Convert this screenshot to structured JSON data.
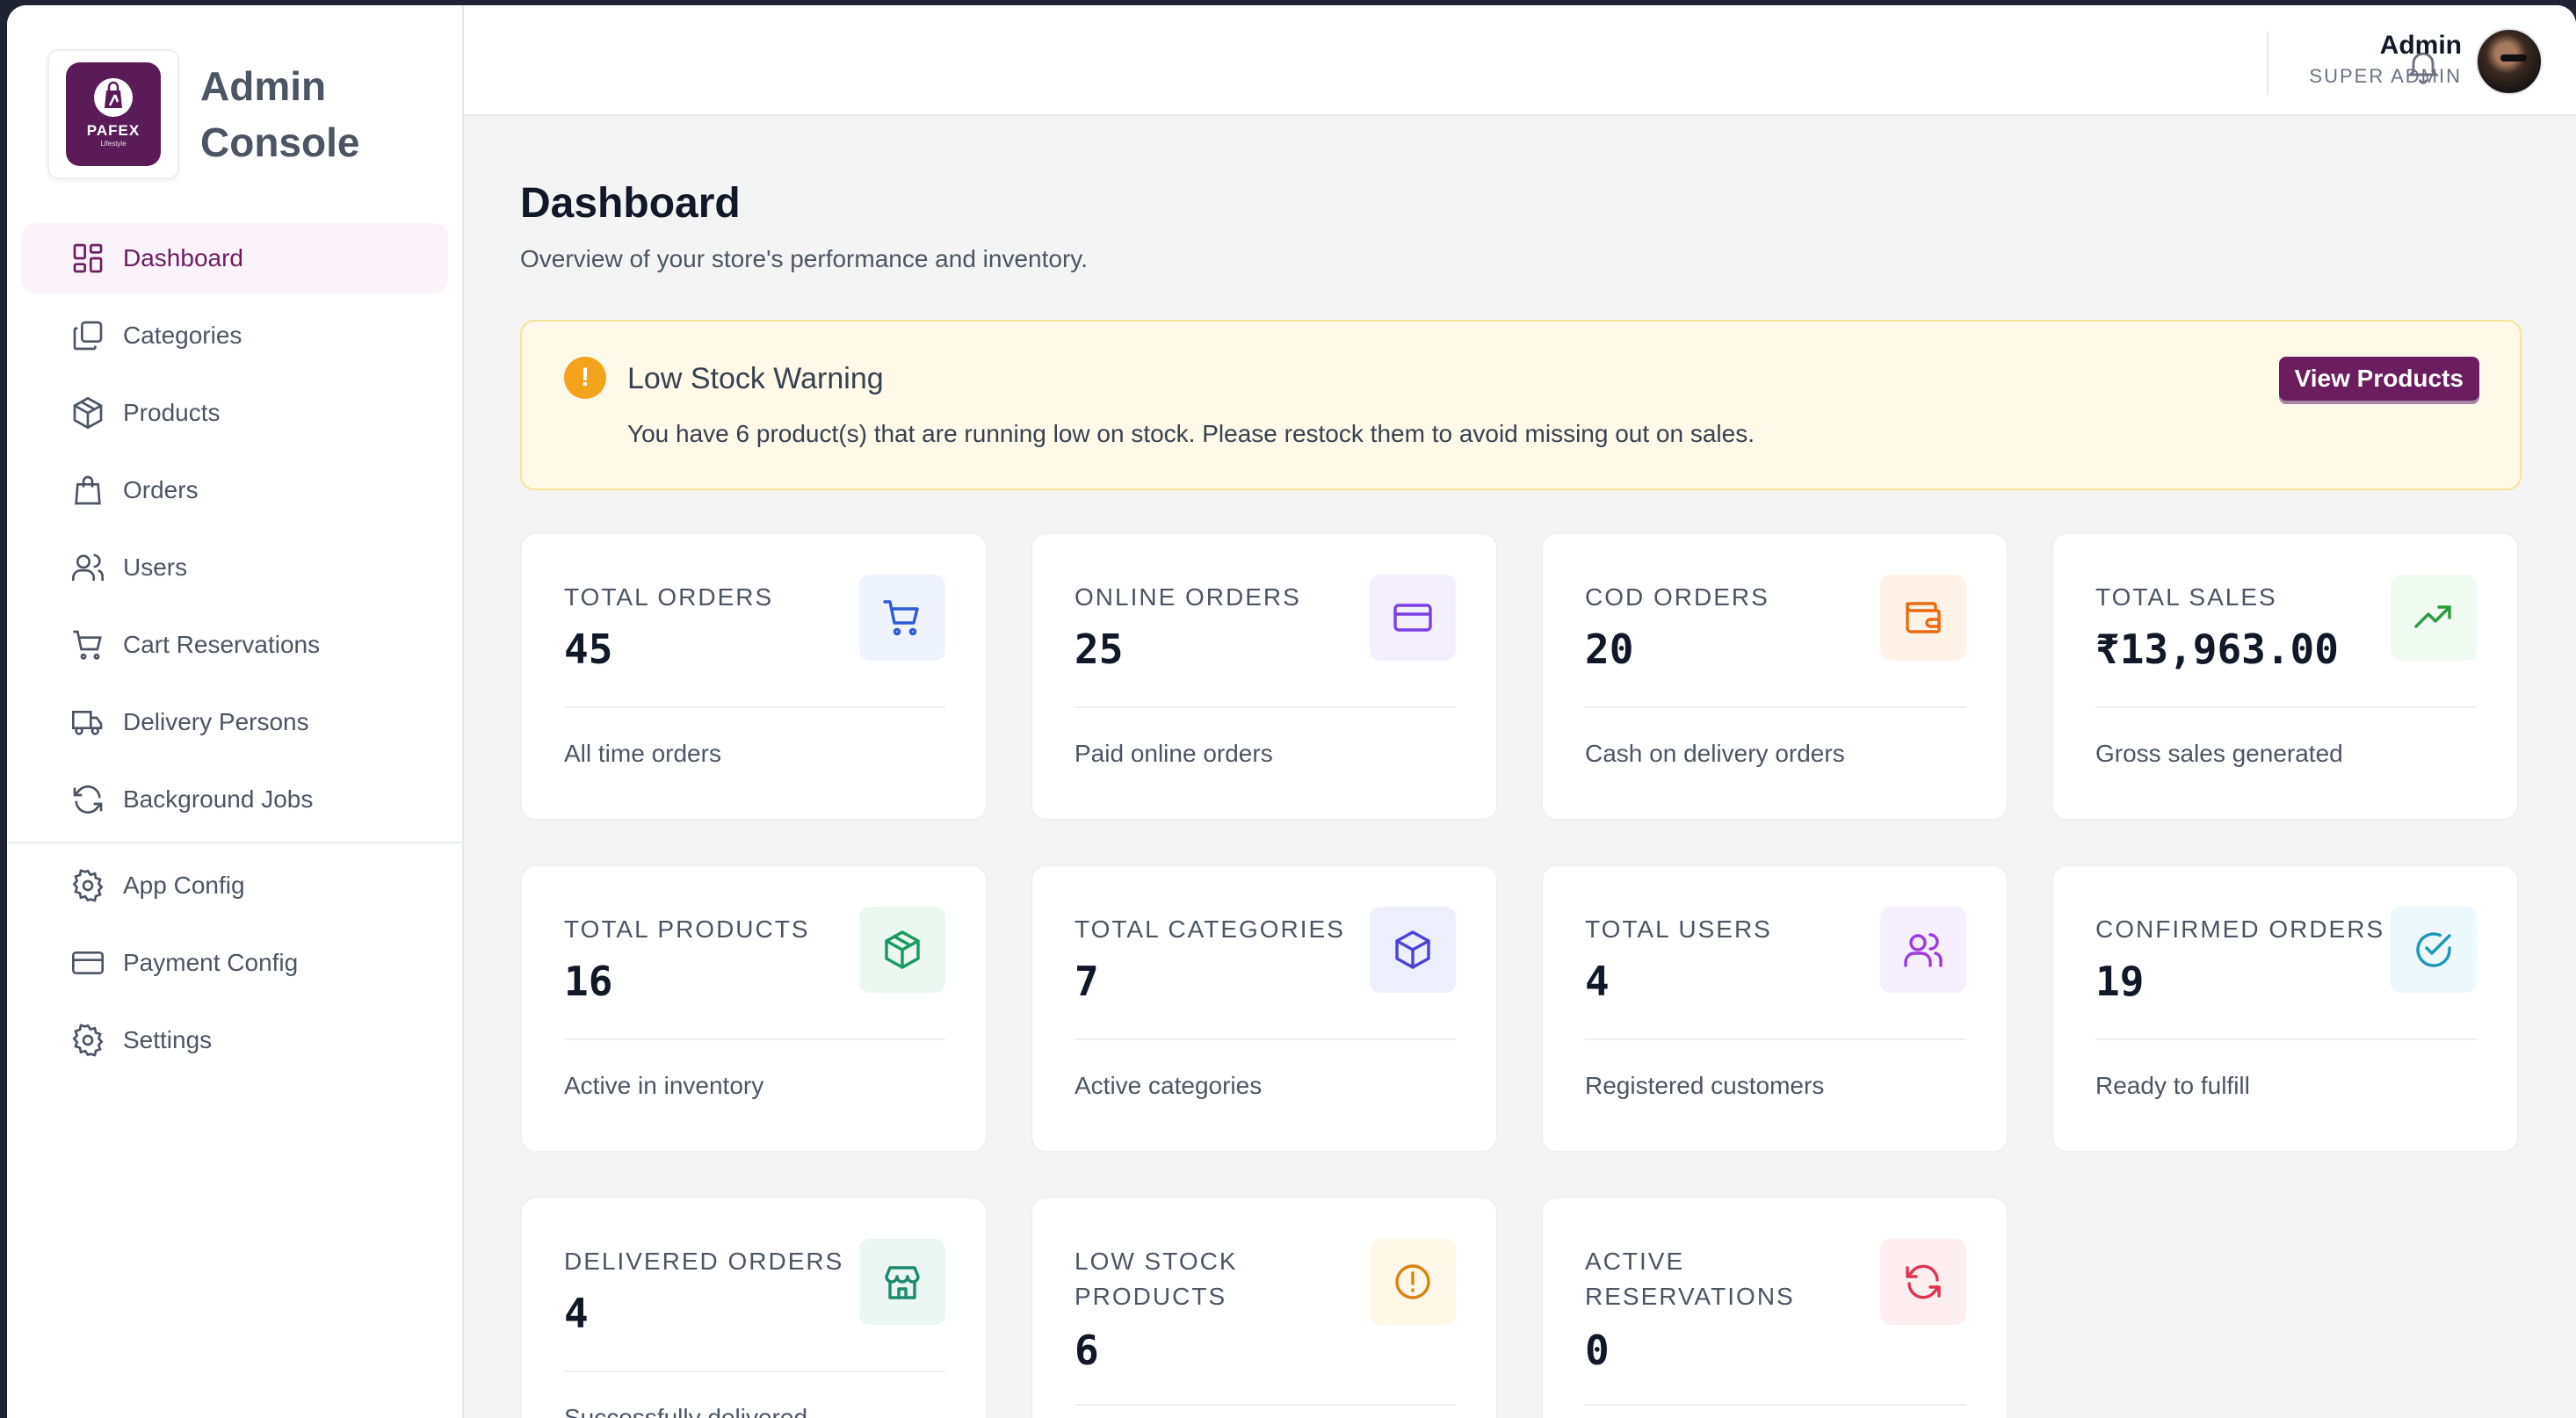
{
  "brand": {
    "logo_text": "PAFEX",
    "logo_sub": "Lifestyle",
    "title_line1": "Admin",
    "title_line2": "Console"
  },
  "sidebar": {
    "items": [
      {
        "label": "Dashboard",
        "icon": "dashboard-icon",
        "active": true
      },
      {
        "label": "Categories",
        "icon": "categories-icon"
      },
      {
        "label": "Products",
        "icon": "box-icon"
      },
      {
        "label": "Orders",
        "icon": "shopping-bag-icon"
      },
      {
        "label": "Users",
        "icon": "users-icon"
      },
      {
        "label": "Cart Reservations",
        "icon": "cart-icon"
      },
      {
        "label": "Delivery Persons",
        "icon": "truck-icon"
      },
      {
        "label": "Background Jobs",
        "icon": "refresh-icon"
      }
    ],
    "config_items": [
      {
        "label": "App Config",
        "icon": "gear-icon"
      },
      {
        "label": "Payment Config",
        "icon": "credit-card-icon"
      },
      {
        "label": "Settings",
        "icon": "gear-icon"
      }
    ]
  },
  "header": {
    "user_name": "Admin",
    "user_role": "SUPER ADMIN"
  },
  "page": {
    "title": "Dashboard",
    "subtitle": "Overview of your store's performance and inventory."
  },
  "alert": {
    "title": "Low Stock Warning",
    "text": "You have 6 product(s) that are running low on stock. Please restock them to avoid missing out on sales.",
    "button": "View Products",
    "icon_glyph": "!"
  },
  "cards": [
    {
      "label": "TOTAL ORDERS",
      "value": "45",
      "desc": "All time orders",
      "icon": "cart-icon",
      "bg": "#eef3fd",
      "color": "#2f5bd6"
    },
    {
      "label": "ONLINE ORDERS",
      "value": "25",
      "desc": "Paid online orders",
      "icon": "credit-card-icon",
      "bg": "#f3effd",
      "color": "#7b3fe4"
    },
    {
      "label": "COD ORDERS",
      "value": "20",
      "desc": "Cash on delivery orders",
      "icon": "wallet-icon",
      "bg": "#fff3e8",
      "color": "#ea6a10"
    },
    {
      "label": "TOTAL SALES",
      "value": "₹13,963.00",
      "desc": "Gross sales generated",
      "icon": "trending-up-icon",
      "bg": "#effaf1",
      "color": "#2e9a3e"
    },
    {
      "label": "TOTAL PRODUCTS",
      "value": "16",
      "desc": "Active in inventory",
      "icon": "package-icon",
      "bg": "#eaf8f1",
      "color": "#169a5e"
    },
    {
      "label": "TOTAL CATEGORIES",
      "value": "7",
      "desc": "Active categories",
      "icon": "cube-icon",
      "bg": "#eeeffd",
      "color": "#4a43d6"
    },
    {
      "label": "TOTAL USERS",
      "value": "4",
      "desc": "Registered customers",
      "icon": "users-icon",
      "bg": "#f6effd",
      "color": "#9b3ce0"
    },
    {
      "label": "CONFIRMED ORDERS",
      "value": "19",
      "desc": "Ready to fulfill",
      "icon": "check-circle-icon",
      "bg": "#ecf8fb",
      "color": "#1c97b6"
    },
    {
      "label": "DELIVERED ORDERS",
      "value": "4",
      "desc": "Successfully delivered",
      "icon": "store-icon",
      "bg": "#eaf7f3",
      "color": "#1d8a70"
    },
    {
      "label": "LOW STOCK PRODUCTS",
      "value": "6",
      "desc": "",
      "icon": "alert-circle-icon",
      "bg": "#fff7e8",
      "color": "#d9820f"
    },
    {
      "label": "ACTIVE RESERVATIONS",
      "value": "0",
      "desc": "",
      "icon": "refresh-icon",
      "bg": "#fdeef0",
      "color": "#e0344e"
    }
  ]
}
